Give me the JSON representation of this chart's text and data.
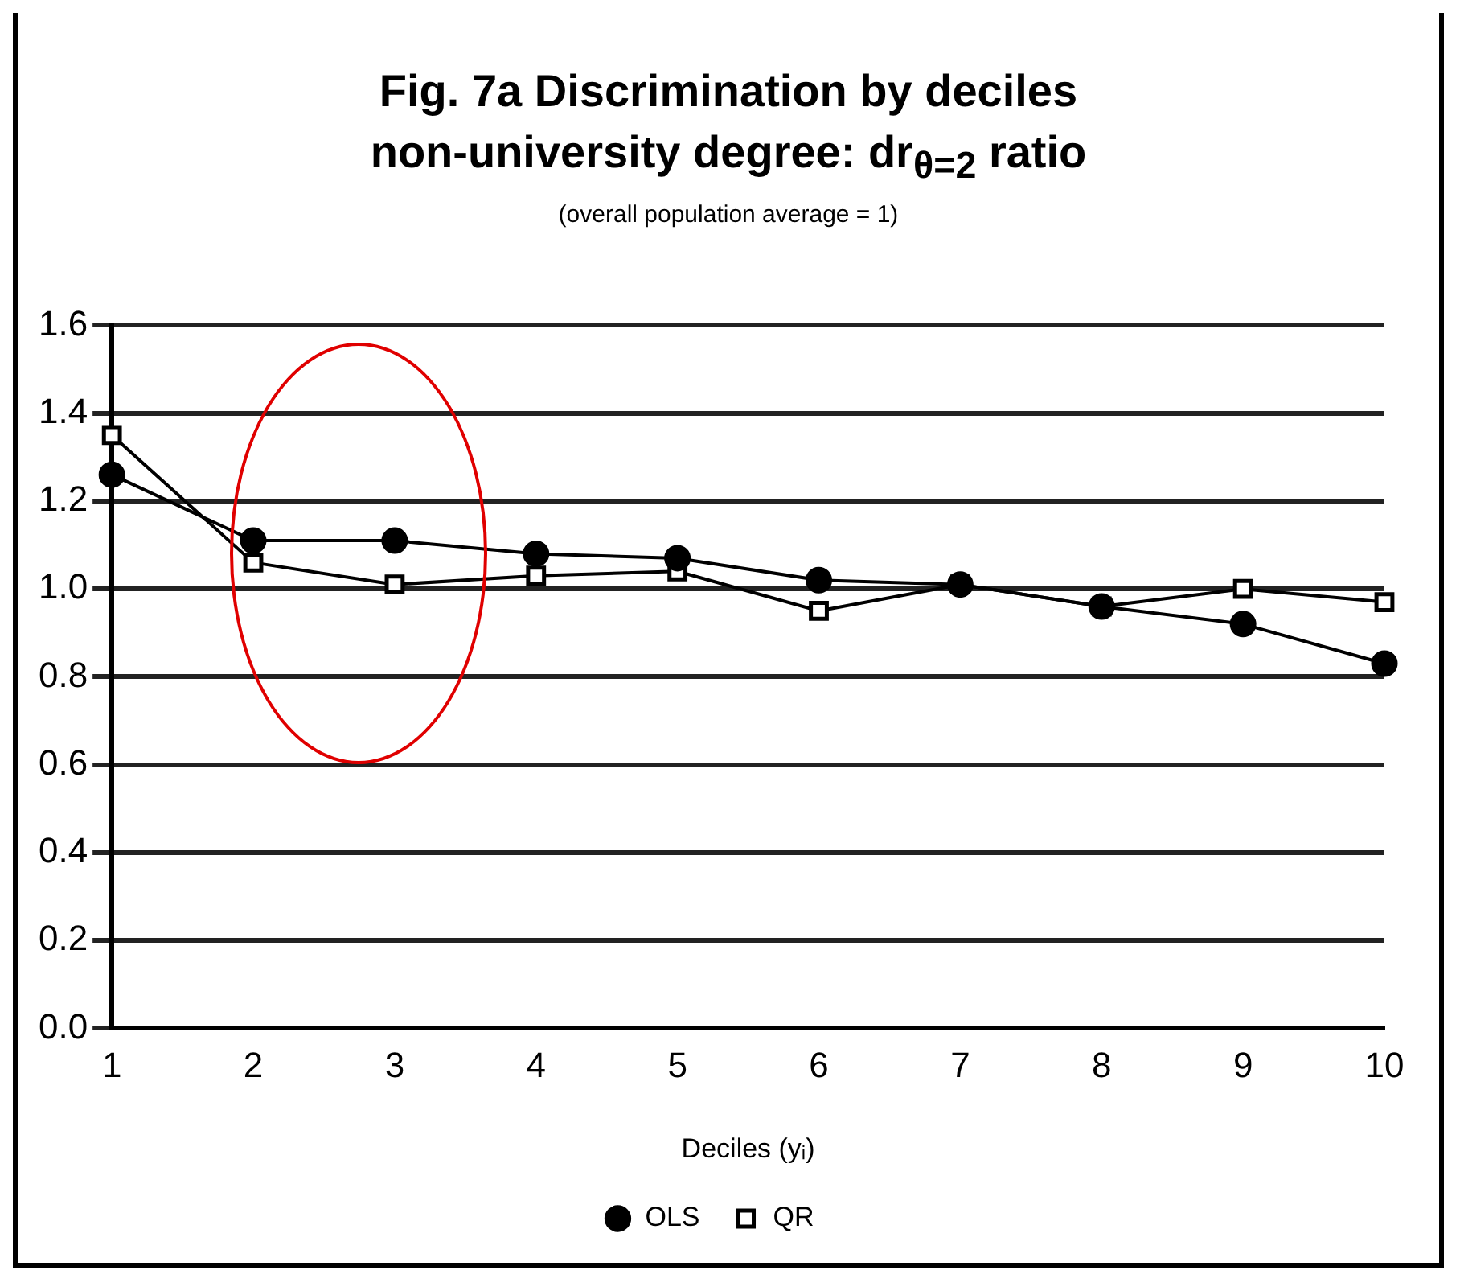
{
  "chart_data": {
    "type": "line",
    "title": "Fig. 7a Discrimination by deciles",
    "subtitle": "non-university degree: dr$_{θ=2}$ ratio",
    "annotations": [
      "(overall population average = 1)"
    ],
    "xlabel": "Deciles (yᵢ)",
    "categories": [
      "1",
      "2",
      "3",
      "4",
      "5",
      "6",
      "7",
      "8",
      "9",
      "10"
    ],
    "series": [
      {
        "name": "OLS",
        "color": "#000000",
        "marker": "circle",
        "values": [
          1.26,
          1.11,
          1.11,
          1.08,
          1.07,
          1.02,
          1.01,
          0.96,
          0.92,
          0.83
        ]
      },
      {
        "name": "QR",
        "color": "#000000",
        "marker": "square",
        "values": [
          1.35,
          1.06,
          1.01,
          1.03,
          1.04,
          0.95,
          1.01,
          0.96,
          1.0,
          0.97
        ]
      }
    ],
    "ylim": [
      0,
      1.6
    ],
    "yticks": [
      {
        "value": 0,
        "label": "0.0"
      },
      {
        "value": 0.2,
        "label": "0.2"
      },
      {
        "value": 0.4,
        "label": "0.4"
      },
      {
        "value": 0.6,
        "label": "0.6"
      },
      {
        "value": 0.8,
        "label": "0.8"
      },
      {
        "value": 1,
        "label": "1.0"
      },
      {
        "value": 1.2,
        "label": "1.2"
      },
      {
        "value": 1.4,
        "label": "1.4"
      },
      {
        "value": 1.6,
        "label": "1.6"
      }
    ],
    "grid": "y",
    "legend": "bottom",
    "line_style": "solid"
  }
}
